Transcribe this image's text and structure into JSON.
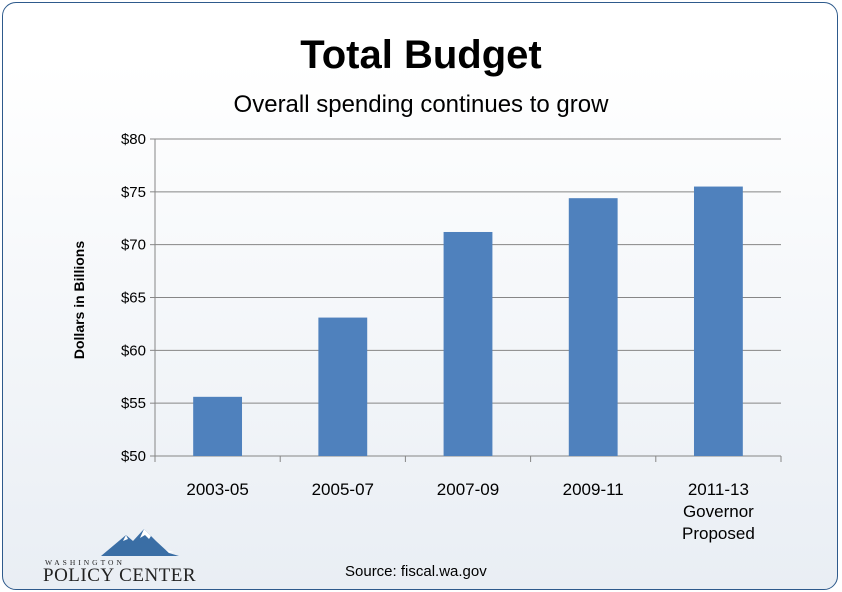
{
  "chart_data": {
    "type": "bar",
    "title": "Total Budget",
    "subtitle": "Overall spending continues to grow",
    "ylabel": "Dollars in Billions",
    "xlabel": "",
    "categories": [
      [
        "2003-05"
      ],
      [
        "2005-07"
      ],
      [
        "2007-09"
      ],
      [
        "2009-11"
      ],
      [
        "2011-13",
        "Governor",
        "Proposed"
      ]
    ],
    "values": [
      55.6,
      63.1,
      71.2,
      74.4,
      75.5
    ],
    "ylim": [
      50,
      80
    ],
    "yticks": [
      50,
      55,
      60,
      65,
      70,
      75,
      80
    ],
    "ytick_labels": [
      "$50",
      "$55",
      "$60",
      "$65",
      "$70",
      "$75",
      "$80"
    ],
    "grid": true,
    "bar_color": "#4f81bd"
  },
  "footer": {
    "source": "Source: fiscal.wa.gov",
    "logo_top": "WASHINGTON",
    "logo_main": "POLICY CENTER"
  },
  "colors": {
    "border": "#2e5a8c",
    "grid": "#868686",
    "logo_mountain": "#3a6ea5"
  }
}
